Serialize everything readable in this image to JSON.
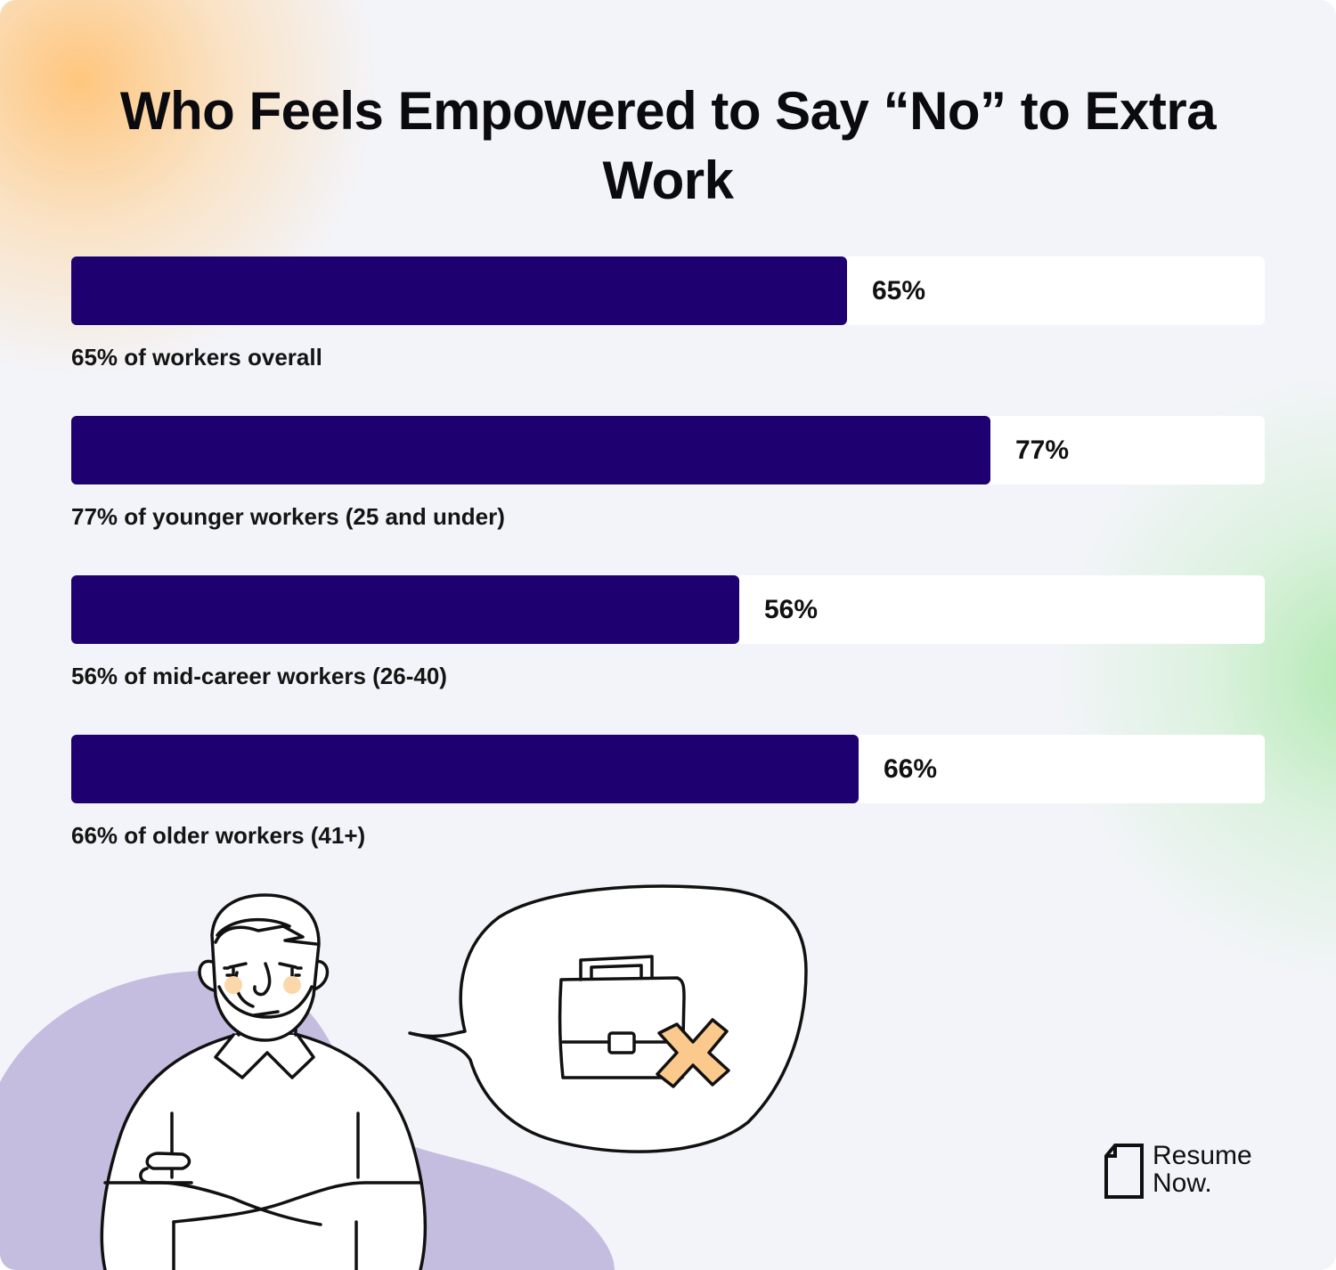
{
  "title": "Who Feels Empowered to Say “No” to Extra Work",
  "colors": {
    "bar_fill": "#1f0070",
    "track": "#ffffff",
    "background": "#f3f4f9",
    "blob": "#c4bde0",
    "accent_orange": "#fbc98b"
  },
  "chart_data": {
    "type": "bar",
    "orientation": "horizontal",
    "ylim": [
      0,
      100
    ],
    "categories": [
      "65% of workers overall",
      "77% of younger workers (25 and under)",
      "56% of mid-career workers (26-40)",
      "66% of older workers (41+)"
    ],
    "values": [
      65,
      77,
      56,
      66
    ],
    "value_labels": [
      "65%",
      "77%",
      "56%",
      "66%"
    ]
  },
  "illustration": {
    "figure_icon": "man-arms-crossed-icon",
    "bubble_icon": "speech-bubble-icon",
    "briefcase_icon": "briefcase-icon",
    "cross_icon": "x-mark-icon"
  },
  "logo": {
    "text": "Resume\nNow.",
    "icon": "document-icon"
  }
}
